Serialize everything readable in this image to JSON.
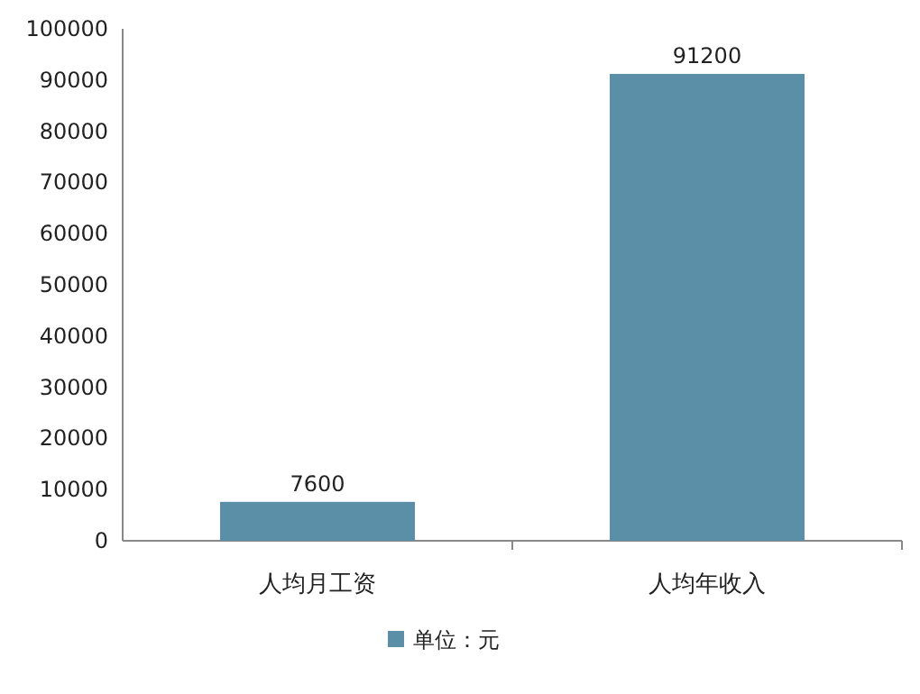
{
  "chart_data": {
    "type": "bar",
    "categories": [
      "人均月工资",
      "人均年收入"
    ],
    "series": [
      {
        "name": "单位：元",
        "color": "#5b8fa8",
        "values": [
          7600,
          91200
        ]
      }
    ],
    "ylim": [
      0,
      100000
    ],
    "yticks": [
      0,
      10000,
      20000,
      30000,
      40000,
      50000,
      60000,
      70000,
      80000,
      90000,
      100000
    ],
    "data_labels": true,
    "legend": "bottom"
  }
}
